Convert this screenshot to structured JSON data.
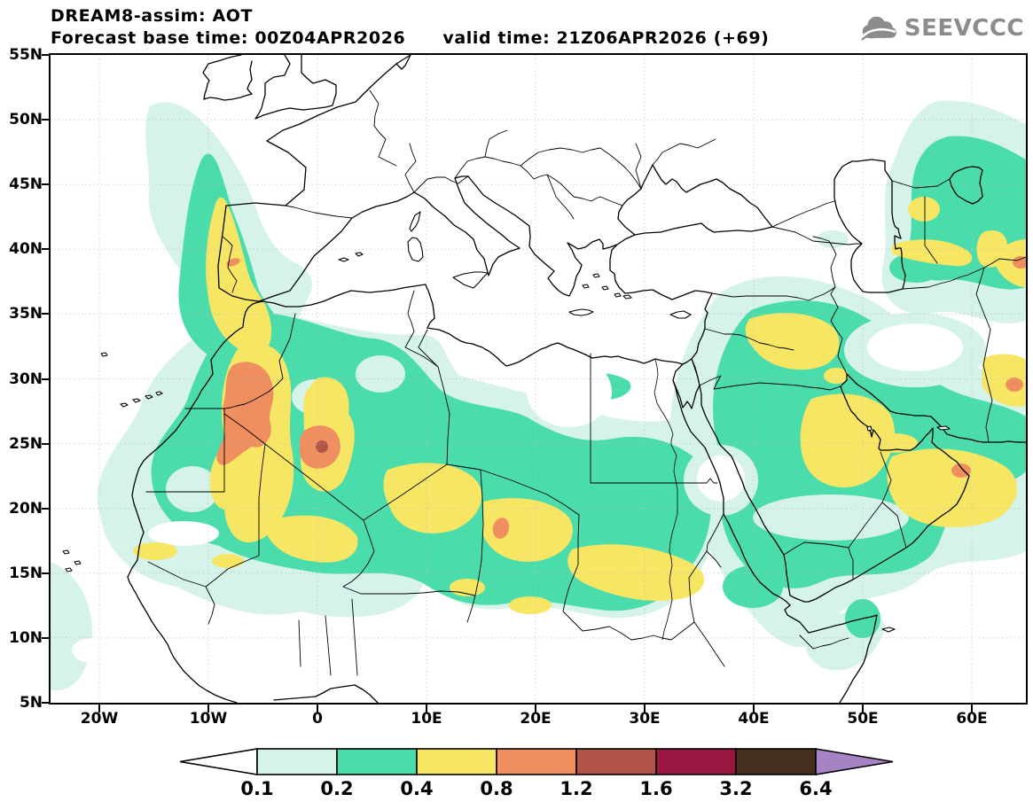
{
  "header": {
    "title": "DREAM8-assim: AOT",
    "forecast_label": "Forecast base time:",
    "forecast_base_time": "00Z04APR2026",
    "valid_label": "valid time:",
    "valid_time": "21Z06APR2026",
    "lead": "(+69)"
  },
  "logo": {
    "text": "SEEVCCC"
  },
  "chart_data": {
    "type": "filled_contour_map",
    "title": "DREAM8-assim: AOT",
    "model": "DREAM8-assim",
    "variable": "AOT (aerosol optical thickness)",
    "forecast_base_time": "00Z04APR2026",
    "valid_time": "21Z06APR2026",
    "lead_hours": 69,
    "domain": {
      "lon_min": "25W",
      "lon_max": "65E",
      "lat_min": "5N",
      "lat_max": "55N"
    },
    "x_ticks": [
      "20W",
      "10W",
      "0",
      "10E",
      "20E",
      "30E",
      "40E",
      "50E",
      "60E"
    ],
    "y_ticks": [
      "55N",
      "50N",
      "45N",
      "40N",
      "35N",
      "30N",
      "25N",
      "20N",
      "15N",
      "10N",
      "5N"
    ],
    "grid": "dotted, every 5 deg lat / 10 deg lon",
    "colorbar": {
      "levels": [
        "0.1",
        "0.2",
        "0.4",
        "0.8",
        "1.2",
        "1.6",
        "3.2",
        "6.4"
      ],
      "segment_colors": [
        "#ffffff",
        "#d5f3ea",
        "#4bdcab",
        "#f6e664",
        "#ef8e5e",
        "#b05447",
        "#9a1742",
        "#46301d"
      ],
      "over_color": "#a583c4"
    },
    "aot_features": [
      {
        "region": "Portugal / W Iberia plume",
        "peak_range": "0.8-1.2"
      },
      {
        "region": "Morocco / W Algeria",
        "peak_range": "0.8-1.2"
      },
      {
        "region": "Central Algeria (~25N 0E)",
        "peak_range": "1.2-1.6"
      },
      {
        "region": "Chad (~18N 17E)",
        "peak_range": "0.8-1.2"
      },
      {
        "region": "Sahel-Sudan yellow band",
        "peak_range": "0.4-0.8"
      },
      {
        "region": "Iraq / Kuwait",
        "peak_range": "0.4-0.8"
      },
      {
        "region": "Persian Gulf / E Saudi Arabia",
        "peak_range": "0.4-0.8"
      },
      {
        "region": "Oman coast (~20N 57E)",
        "peak_range": "0.8-1.2"
      },
      {
        "region": "East of Caspian (Turkmenistan)",
        "peak_range": "0.4-0.8"
      },
      {
        "region": "E edge of domain (~63E 29N, ~62E 43N)",
        "peak_range": "0.8-1.2"
      }
    ]
  }
}
